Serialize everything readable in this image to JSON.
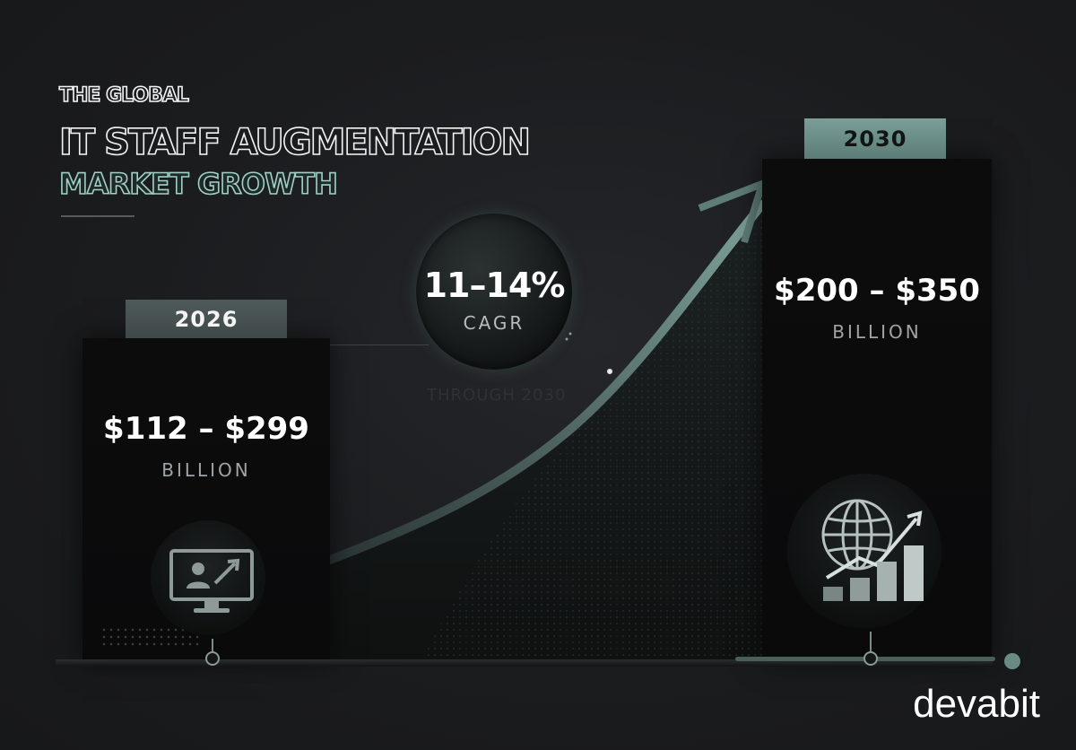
{
  "title": {
    "line1": "THE GLOBAL",
    "line2": "IT STAFF AUGMENTATION",
    "line3": "MARKET  GROWTH"
  },
  "left_block": {
    "year": "2026",
    "value": "$112 – $299",
    "unit": "BILLION",
    "icon": "monitor-user-growth-icon"
  },
  "right_block": {
    "year": "2030",
    "value": "$200 – $350",
    "unit": "BILLION",
    "icon": "globe-bar-chart-icon"
  },
  "cagr": {
    "value": "11–14%",
    "label": "CAGR",
    "through": "THROUGH 2030"
  },
  "brand": "devabit",
  "colors": {
    "background": "#1b1c1e",
    "accent": "#7a9e98",
    "bar": "#0b0b0c"
  }
}
